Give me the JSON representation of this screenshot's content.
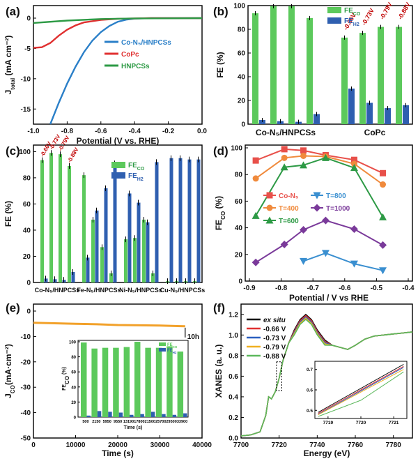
{
  "panel_labels": [
    "(a)",
    "(b)",
    "(c)",
    "(d)",
    "(e)",
    "(f)"
  ],
  "chart_data": [
    {
      "panel": "(a)",
      "type": "line",
      "xlabel": "Potential (V vs. RHE)",
      "ylabel_main": "J",
      "ylabel_sub": "total",
      "ylabel_unit": " (mA cm⁻²)",
      "xlim": [
        -1.0,
        0.0
      ],
      "ylim": [
        -17.5,
        0
      ],
      "xticks": [
        "-1.0",
        "-0.8",
        "-0.6",
        "-0.4",
        "-0.2",
        "0.0"
      ],
      "yticks": [
        "0",
        "-5",
        "-10",
        "-15"
      ],
      "series": [
        {
          "name": "Co-N₅/HNPCSs",
          "color": "#2a7fc8",
          "points": [
            [
              -0.9,
              -17.5
            ],
            [
              -0.85,
              -14.0
            ],
            [
              -0.8,
              -10.8
            ],
            [
              -0.75,
              -8.0
            ],
            [
              -0.7,
              -5.6
            ],
            [
              -0.65,
              -3.7
            ],
            [
              -0.6,
              -2.3
            ],
            [
              -0.55,
              -1.3
            ],
            [
              -0.5,
              -0.6
            ],
            [
              -0.45,
              -0.25
            ],
            [
              -0.4,
              -0.08
            ],
            [
              -0.3,
              0
            ],
            [
              0,
              0
            ]
          ]
        },
        {
          "name": "CoPc",
          "color": "#e03030",
          "points": [
            [
              -1.0,
              -4.9
            ],
            [
              -0.95,
              -4.8
            ],
            [
              -0.9,
              -4.1
            ],
            [
              -0.85,
              -2.9
            ],
            [
              -0.8,
              -1.9
            ],
            [
              -0.75,
              -1.2
            ],
            [
              -0.7,
              -0.7
            ],
            [
              -0.6,
              -0.3
            ],
            [
              -0.5,
              -0.1
            ],
            [
              -0.3,
              0
            ],
            [
              0,
              0
            ]
          ]
        },
        {
          "name": "HNPCSs",
          "color": "#2d9a45",
          "points": [
            [
              -1.0,
              -0.8
            ],
            [
              -0.8,
              -0.4
            ],
            [
              -0.6,
              -0.15
            ],
            [
              -0.4,
              -0.05
            ],
            [
              0,
              0
            ]
          ]
        }
      ]
    },
    {
      "panel": "(b)",
      "type": "bar",
      "ylabel": "FE (%)",
      "ylim": [
        0,
        100
      ],
      "yticks": [
        "0",
        "20",
        "40",
        "60",
        "80",
        "100"
      ],
      "groups": [
        "Co-N₅/HNPCSs",
        "CoPc"
      ],
      "potential_labels": [
        "-0.66V",
        "-0.73V",
        "-0.79V",
        "-0.88V"
      ],
      "legend": [
        "FE",
        "FE"
      ],
      "legend_sub": [
        "CO",
        "H2"
      ],
      "series": [
        {
          "name": "FE_CO",
          "color": "#5cc95c",
          "values": [
            [
              93.5,
              99.5,
              99.5,
              89.5
            ],
            [
              73,
              77,
              82,
              82
            ]
          ]
        },
        {
          "name": "FE_H2",
          "color": "#2f5fb0",
          "values": [
            [
              3.5,
              2.5,
              2,
              8.5
            ],
            [
              30,
              18,
              13.5,
              16
            ]
          ]
        }
      ]
    },
    {
      "panel": "(c)",
      "type": "bar",
      "ylabel": "FE (%)",
      "ylim": [
        0,
        105
      ],
      "yticks": [
        "0",
        "20",
        "40",
        "60",
        "80",
        "100"
      ],
      "categories": [
        "Co-N₅/HNPCSs",
        "Fe-N₅/HNPCSs",
        "Ni-N₅/HNPCSs",
        "Cu-N₅/HNPCSs"
      ],
      "potential_labels": [
        "-0.66V",
        "-0.73V",
        "-0.79V",
        "-0.88V"
      ],
      "legend": [
        "FE",
        "FE"
      ],
      "legend_sub": [
        "CO",
        "H2"
      ],
      "series": [
        {
          "name": "FE_CO",
          "color": "#5cc95c",
          "values": [
            [
              93.5,
              99,
              98,
              89
            ],
            [
              82,
              48,
              27,
              7
            ],
            [
              33,
              34,
              48,
              7
            ],
            [
              1,
              1,
              1,
              1
            ]
          ]
        },
        {
          "name": "FE_H2",
          "color": "#2f5fb0",
          "values": [
            [
              3,
              2.5,
              2,
              8
            ],
            [
              19,
              55,
              72,
              91
            ],
            [
              68,
              61,
              46,
              92
            ],
            [
              95,
              95,
              94,
              94
            ]
          ]
        }
      ]
    },
    {
      "panel": "(d)",
      "type": "line",
      "xlabel": "Potential / V vs RHE",
      "ylabel": "FE",
      "ylabel_sub": "CO",
      "ylabel_unit": " (%)",
      "xlim": [
        -0.9,
        -0.4
      ],
      "ylim": [
        0,
        100
      ],
      "xticks": [
        "-0.8",
        "-0.7",
        "-0.6",
        "-0.5",
        "-0.4"
      ],
      "xticks_extra": "-0.9",
      "yticks": [
        "0",
        "20",
        "40",
        "60",
        "80",
        "100"
      ],
      "series": [
        {
          "name": "Co-N₅",
          "color": "#e8504a",
          "marker": "square",
          "x": [
            -0.88,
            -0.79,
            -0.73,
            -0.66,
            -0.57,
            -0.48
          ],
          "y": [
            90.5,
            99,
            98,
            94.5,
            91,
            81
          ]
        },
        {
          "name": "T=400",
          "color": "#f08a3c",
          "marker": "circle",
          "x": [
            -0.88,
            -0.79,
            -0.73,
            -0.66,
            -0.57,
            -0.48
          ],
          "y": [
            77,
            92.5,
            94,
            93.5,
            88,
            72.5
          ]
        },
        {
          "name": "T=600",
          "color": "#2d9a45",
          "marker": "triangle-up",
          "x": [
            -0.88,
            -0.79,
            -0.73,
            -0.66,
            -0.57,
            -0.48
          ],
          "y": [
            49,
            85.5,
            87,
            92.5,
            85,
            48
          ]
        },
        {
          "name": "T=800",
          "color": "#3a8fd0",
          "marker": "triangle-down",
          "x": [
            -0.73,
            -0.66,
            -0.57,
            -0.48
          ],
          "y": [
            15,
            21,
            13,
            8
          ]
        },
        {
          "name": "T=1000",
          "color": "#7a3a9a",
          "marker": "diamond",
          "x": [
            -0.88,
            -0.79,
            -0.73,
            -0.66,
            -0.57,
            -0.48
          ],
          "y": [
            14,
            27.5,
            38.5,
            45.5,
            39,
            27
          ]
        }
      ]
    },
    {
      "panel": "(e)",
      "type": "line",
      "xlabel": "Time (s)",
      "ylabel": "J",
      "ylabel_sub": "CO",
      "ylabel_unit": "(mA·cm⁻²)",
      "xlim": [
        0,
        40000
      ],
      "ylim": [
        -50,
        0
      ],
      "xticks": [
        "0",
        "10000",
        "20000",
        "30000",
        "40000"
      ],
      "yticks": [
        "0",
        "-10",
        "-20",
        "-30",
        "-40",
        "-50"
      ],
      "annotation": "10h",
      "series": [
        {
          "name": "J_CO",
          "color": "#f2a12a",
          "points": [
            [
              0,
              -4.6
            ],
            [
              5000,
              -4.8
            ],
            [
              10000,
              -5.0
            ],
            [
              15000,
              -5.2
            ],
            [
              20000,
              -5.5
            ],
            [
              25000,
              -5.6
            ],
            [
              30000,
              -5.7
            ],
            [
              36000,
              -6.0
            ]
          ]
        }
      ],
      "inset": {
        "type": "bar",
        "ylabel": "FE",
        "ylabel_sub": "CO",
        "ylabel_unit": " (%)",
        "xlabel": "Time (s)",
        "ylim": [
          0,
          100
        ],
        "yticks": [
          "0",
          "20",
          "40",
          "60",
          "80",
          "100"
        ],
        "categories": [
          "500",
          "2150",
          "5950",
          "9550",
          "13190",
          "17800",
          "21500",
          "25700",
          "29500",
          "33900"
        ],
        "legend": [
          "FE",
          "FE"
        ],
        "legend_sub": [
          "CO",
          "H2"
        ],
        "series": [
          {
            "name": "FE_CO",
            "color": "#5cc95c",
            "values": [
              99,
              91,
              92,
              92,
              93,
              100,
              92,
              92,
              94,
              87
            ]
          },
          {
            "name": "FE_H2",
            "color": "#2f5fb0",
            "values": [
              2,
              8,
              7,
              6,
              3,
              4,
              7,
              4,
              3,
              5
            ]
          }
        ]
      }
    },
    {
      "panel": "(f)",
      "type": "line",
      "xlabel": "Energy (eV)",
      "ylabel": "XANES (a. u.)",
      "xlim": [
        7700,
        7790
      ],
      "ylim": [
        0,
        1.2
      ],
      "xticks": [
        "7700",
        "7720",
        "7740",
        "7760",
        "7780"
      ],
      "yticks": [
        "0.0",
        "0.2",
        "0.4",
        "0.6",
        "0.8",
        "1.0",
        "1.2"
      ],
      "legend": [
        "ex situ",
        "-0.66 V",
        "-0.73 V",
        "-0.79 V",
        "-0.88 V"
      ],
      "colors": [
        "#111111",
        "#e03030",
        "#2a5fc0",
        "#f0b020",
        "#5cb85c"
      ],
      "inset": {
        "xlim": [
          7718.6,
          7721.4
        ],
        "ylim": [
          0.46,
          0.74
        ],
        "xticks": [
          "7719",
          "7720",
          "7721"
        ],
        "yticks": [
          "0.5",
          "0.6",
          "0.7"
        ],
        "series_end_y": [
          0.725,
          0.715,
          0.71,
          0.7,
          0.688
        ],
        "series_start_y": [
          0.49,
          0.485,
          0.48,
          0.478,
          0.47
        ]
      }
    }
  ]
}
